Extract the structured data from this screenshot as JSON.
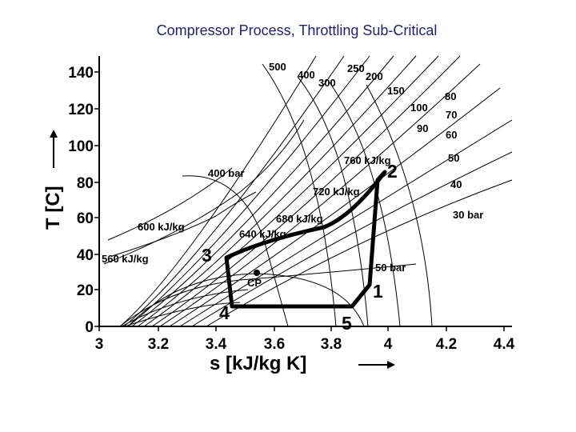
{
  "title": "Compressor Process, Throttling Sub-Critical",
  "axes": {
    "x_label": "s [kJ/kg K]",
    "y_label": "T  [C]",
    "x_ticks": [
      "3",
      "3.2",
      "3.4",
      "3.6",
      "3.8",
      "4",
      "4.2",
      "4.4"
    ],
    "y_ticks": [
      "0",
      "20",
      "40",
      "60",
      "80",
      "100",
      "120",
      "140"
    ],
    "x_range": [
      3.0,
      4.4
    ],
    "y_range": [
      0,
      150
    ]
  },
  "labels": {
    "isobars": [
      "500",
      "400",
      "300",
      "250",
      "200",
      "150",
      "100",
      "90",
      "80",
      "70",
      "60",
      "50",
      "40",
      "30 bar",
      "400 bar",
      "50 bar"
    ],
    "isenthalps": [
      "760 kJ/kg",
      "720 kJ/kg",
      "680 kJ/kg",
      "640 kJ/kg",
      "600 kJ/kg",
      "560 kJ/kg"
    ],
    "critical_point": "CP"
  },
  "cycle": {
    "points": [
      {
        "label": "1",
        "s": 3.93,
        "T": 22
      },
      {
        "label": "2",
        "s": 3.97,
        "T": 88
      },
      {
        "label": "3",
        "s": 3.44,
        "T": 37
      },
      {
        "label": "4",
        "s": 3.48,
        "T": 11
      },
      {
        "label": "5",
        "s": 3.89,
        "T": 11
      }
    ]
  }
}
